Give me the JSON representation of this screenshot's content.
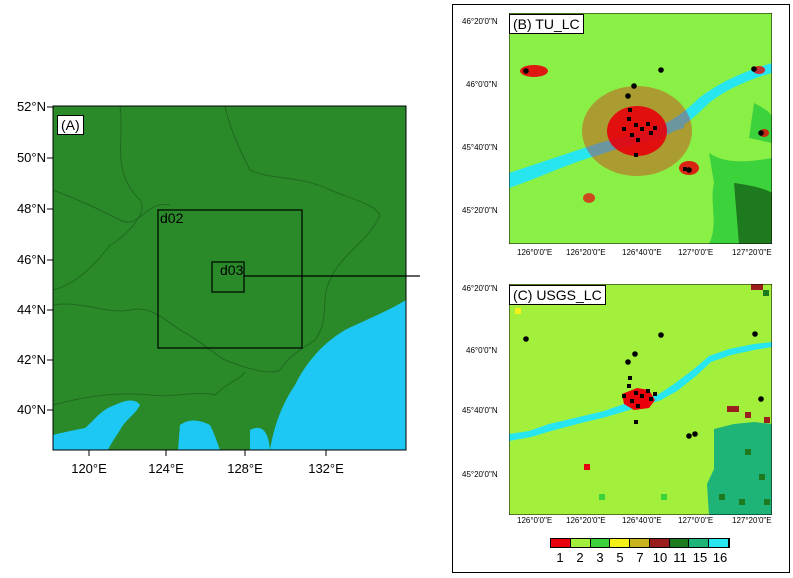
{
  "panel_a": {
    "label": "(A)",
    "domain2_label": "d02",
    "domain3_label": "d03",
    "lat_ticks": [
      "52°N",
      "50°N",
      "48°N",
      "46°N",
      "44°N",
      "42°N",
      "40°N"
    ],
    "lon_ticks": [
      "120°E",
      "124°E",
      "128°E",
      "132°E"
    ],
    "colors": {
      "land": "#2a8a2a",
      "water": "#1ec8f5",
      "border": "#1f6a1f"
    }
  },
  "panel_b": {
    "label": "(B) TU_LC",
    "lat_ticks": [
      "46°20'0\"N",
      "46°0'0\"N",
      "45°40'0\"N",
      "45°20'0\"N"
    ],
    "lon_ticks": [
      "126°0'0\"E",
      "126°20'0\"E",
      "126°40'0\"E",
      "127°0'0\"E",
      "127°20'0\"E"
    ]
  },
  "panel_c": {
    "label": "(C) USGS_LC",
    "lat_ticks": [
      "46°20'0\"N",
      "46°0'0\"N",
      "45°40'0\"N",
      "45°20'0\"N"
    ],
    "lon_ticks": [
      "126°0'0\"E",
      "126°20'0\"E",
      "126°40'0\"E",
      "127°0'0\"E",
      "127°20'0\"E"
    ]
  },
  "legend": {
    "classes": [
      {
        "value": "1",
        "color": "#e8000b"
      },
      {
        "value": "2",
        "color": "#a2f03c"
      },
      {
        "value": "3",
        "color": "#3cd23c"
      },
      {
        "value": "5",
        "color": "#f5f018"
      },
      {
        "value": "7",
        "color": "#c8b41e"
      },
      {
        "value": "10",
        "color": "#9b1e1e"
      },
      {
        "value": "11",
        "color": "#1e7a1e"
      },
      {
        "value": "15",
        "color": "#1eb478"
      },
      {
        "value": "16",
        "color": "#28e6f0"
      }
    ]
  }
}
